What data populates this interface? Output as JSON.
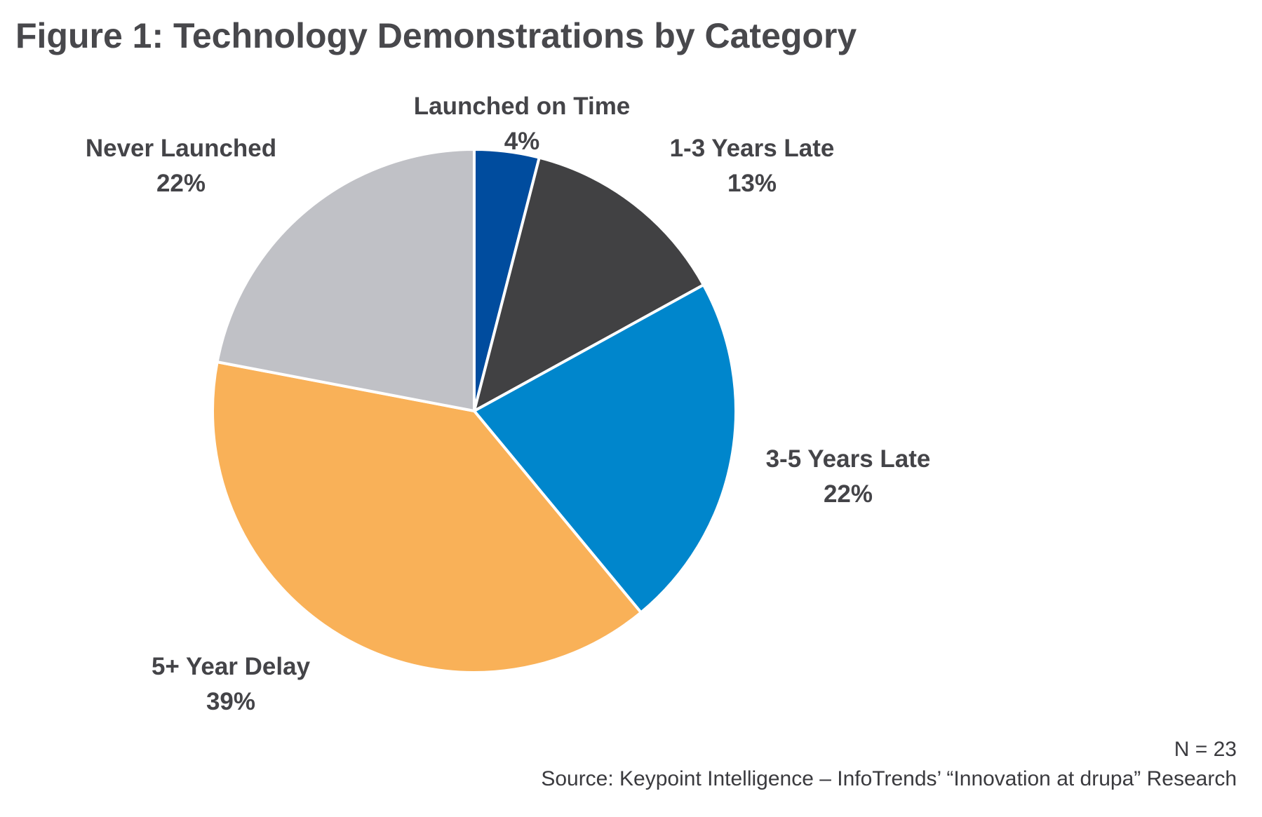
{
  "title": "Figure 1: Technology Demonstrations by Category",
  "chart_data": {
    "type": "pie",
    "title": "Figure 1: Technology Demonstrations by Category",
    "slices": [
      {
        "label": "Launched on Time",
        "value": 4,
        "value_label": "4%",
        "color": "#004c9e"
      },
      {
        "label": "1-3 Years Late",
        "value": 13,
        "value_label": "13%",
        "color": "#414143"
      },
      {
        "label": "3-5 Years Late",
        "value": 22,
        "value_label": "22%",
        "color": "#0086cc"
      },
      {
        "label": "5+ Year Delay",
        "value": 39,
        "value_label": "39%",
        "color": "#f9b158"
      },
      {
        "label": "Never Launched",
        "value": 22,
        "value_label": "22%",
        "color": "#c0c1c6"
      }
    ],
    "start_angle": "12 o'clock",
    "direction": "clockwise",
    "legend": "none (labels placed outside slices)"
  },
  "footer": {
    "n": "N = 23",
    "source": "Source: Keypoint Intelligence – InfoTrends’ “Innovation at drupa” Research"
  }
}
